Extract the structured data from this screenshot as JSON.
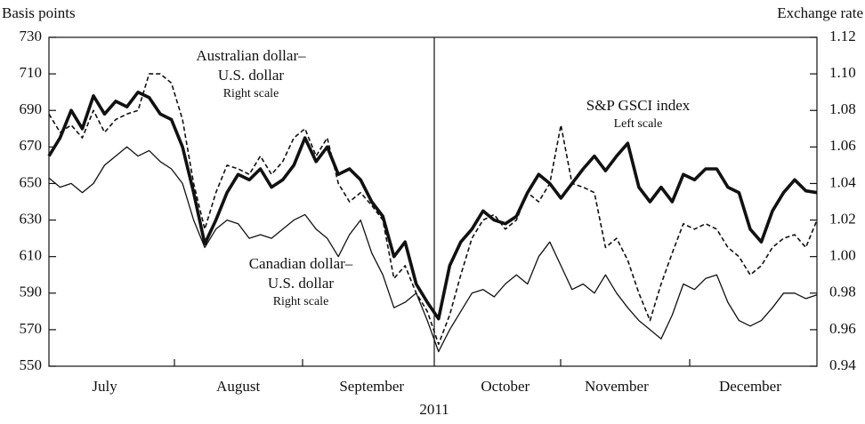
{
  "chart_data": {
    "type": "line",
    "y_label": "Basis points",
    "y2_label": "Exchange rate",
    "x_label": "2011",
    "categories": [
      null,
      null,
      null,
      null,
      null,
      "July",
      null,
      null,
      null,
      null,
      null,
      null,
      null,
      null,
      null,
      null,
      null,
      "August",
      null,
      null,
      null,
      null,
      null,
      null,
      null,
      null,
      null,
      null,
      null,
      "September",
      null,
      null,
      null,
      null,
      null,
      null,
      null,
      null,
      null,
      null,
      null,
      "October",
      null,
      null,
      null,
      null,
      null,
      null,
      null,
      null,
      null,
      "November",
      null,
      null,
      null,
      null,
      null,
      null,
      null,
      null,
      null,
      null,
      null,
      "December",
      null,
      null,
      null,
      null,
      null,
      null
    ],
    "ylim": [
      550,
      730
    ],
    "yticks": [
      550,
      570,
      590,
      610,
      630,
      650,
      670,
      690,
      710,
      730
    ],
    "y2lim": [
      0.94,
      1.12
    ],
    "y2ticks": [
      0.94,
      0.96,
      0.98,
      {
        "value": 1.0,
        "label": "1.00"
      },
      1.02,
      1.04,
      1.06,
      1.08,
      {
        "value": 1.1,
        "label": "1.10"
      },
      1.12
    ],
    "series": [
      {
        "label": [
          "S&P GSCI index"
        ],
        "scale_label": "Left scale",
        "color": "#111",
        "style": "thick",
        "values": [
          665,
          675,
          690,
          680,
          698,
          688,
          695,
          692,
          700,
          697,
          688,
          685,
          670,
          645,
          617,
          630,
          645,
          655,
          652,
          658,
          648,
          652,
          660,
          675,
          662,
          670,
          655,
          658,
          652,
          640,
          632,
          610,
          618,
          595,
          585,
          576,
          605,
          618,
          625,
          635,
          630,
          628,
          632,
          645,
          655,
          650,
          642,
          650,
          658,
          665,
          657,
          665,
          672,
          648,
          640,
          648,
          640,
          655,
          652,
          658,
          658,
          648,
          645,
          625,
          618,
          635,
          645,
          652,
          646,
          645
        ]
      },
      {
        "label": [
          "Australian dollar–",
          "U.S. dollar"
        ],
        "scale_label": "Right scale",
        "axis": "y2",
        "color": "#111",
        "style": "dashed",
        "values": [
          1.078,
          1.068,
          1.072,
          1.065,
          1.08,
          1.068,
          1.075,
          1.078,
          1.08,
          1.1,
          1.1,
          1.095,
          1.075,
          1.04,
          1.015,
          1.035,
          1.05,
          1.048,
          1.045,
          1.055,
          1.045,
          1.052,
          1.065,
          1.07,
          1.055,
          1.065,
          1.04,
          1.03,
          1.035,
          1.028,
          1.02,
          0.988,
          0.995,
          0.98,
          0.97,
          0.952,
          0.968,
          0.99,
          1.01,
          1.02,
          1.023,
          1.015,
          1.02,
          1.035,
          1.03,
          1.04,
          1.072,
          1.04,
          1.038,
          1.035,
          1.005,
          1.01,
          0.998,
          0.98,
          0.965,
          0.985,
          1.002,
          1.018,
          1.015,
          1.018,
          1.015,
          1.005,
          1.0,
          0.99,
          0.995,
          1.005,
          1.01,
          1.012,
          1.005,
          1.02
        ]
      },
      {
        "label": [
          "Canadian dollar–",
          "U.S. dollar"
        ],
        "scale_label": "Right scale",
        "axis": "y2",
        "color": "#111",
        "style": "thin",
        "values": [
          1.043,
          1.038,
          1.04,
          1.035,
          1.04,
          1.05,
          1.055,
          1.06,
          1.055,
          1.058,
          1.052,
          1.048,
          1.04,
          1.02,
          1.005,
          1.015,
          1.02,
          1.018,
          1.01,
          1.012,
          1.01,
          1.015,
          1.02,
          1.023,
          1.015,
          1.01,
          1.0,
          1.012,
          1.02,
          1.002,
          0.99,
          0.972,
          0.975,
          0.98,
          0.965,
          0.948,
          0.96,
          0.97,
          0.98,
          0.982,
          0.978,
          0.985,
          0.99,
          0.985,
          1.0,
          1.008,
          0.995,
          0.982,
          0.985,
          0.98,
          0.99,
          0.98,
          0.972,
          0.965,
          0.96,
          0.955,
          0.968,
          0.985,
          0.982,
          0.988,
          0.99,
          0.975,
          0.965,
          0.962,
          0.965,
          0.972,
          0.98,
          0.98,
          0.977,
          0.979
        ]
      }
    ]
  }
}
